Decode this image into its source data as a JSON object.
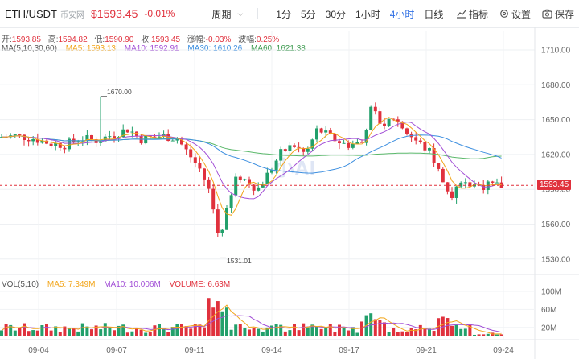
{
  "header": {
    "symbol": "ETH/USDT",
    "exchange": "币安网",
    "price": "$1593.45",
    "change": "-0.01%",
    "period_label": "周期",
    "timeframes": [
      "1分",
      "5分",
      "30分",
      "1小时",
      "4小时",
      "日线"
    ],
    "active_timeframe": "4小时",
    "tools": {
      "indicators": "指标",
      "settings": "设置",
      "save": "保存"
    }
  },
  "ohlc": {
    "open_label": "开:",
    "open": "1593.85",
    "high_label": "高:",
    "high": "1594.82",
    "low_label": "低:",
    "low": "1590.90",
    "close_label": "收:",
    "close": "1593.45",
    "change_label": "涨幅:",
    "change": "-0.03%",
    "amp_label": "波幅:",
    "amp": "0.25%"
  },
  "ma": {
    "title": "MA(5,10,30,60)",
    "ma5": "MA5: 1593.13",
    "ma10": "MA10: 1592.91",
    "ma30": "MA30: 1610.26",
    "ma60": "MA60: 1621.38"
  },
  "volume": {
    "title": "VOL(5,10)",
    "ma5": "MA5: 7.349M",
    "ma10": "MA10: 10.006M",
    "volume": "VOLUME: 6.63M"
  },
  "colors": {
    "up": "#22a06b",
    "down": "#e0313d",
    "ma5": "#f2a51a",
    "ma10": "#a24fd6",
    "ma30": "#3d8fe0",
    "ma60": "#5ab86a"
  },
  "price_axis": [
    "1710.00",
    "1680.00",
    "1650.00",
    "1620.00",
    "1590.00",
    "1560.00",
    "1530.00"
  ],
  "last_price_tag": "1593.45",
  "volume_axis": [
    "100M",
    "60M",
    "20M"
  ],
  "date_axis": [
    "09-04",
    "09-07",
    "09-11",
    "09-14",
    "09-17",
    "09-21",
    "09-24"
  ],
  "annotations": {
    "high": "1670.00",
    "low": "1531.01"
  },
  "watermark": "小AI"
}
